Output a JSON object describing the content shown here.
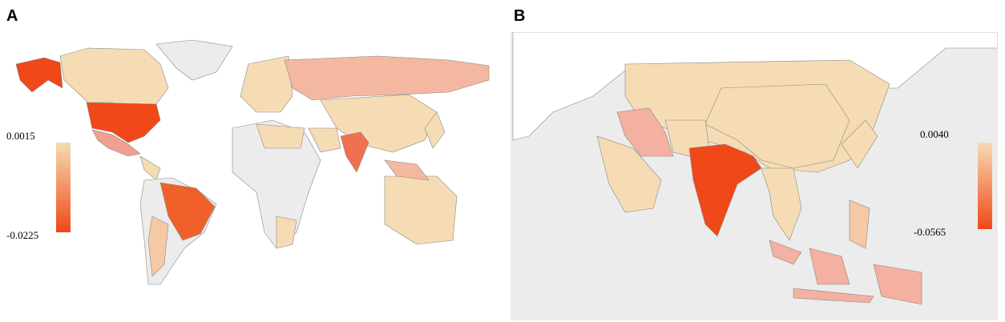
{
  "panels": [
    {
      "label": "A",
      "legend": {
        "max": 0.0015,
        "min": -0.0225,
        "color_max": "#f6dcb4",
        "color_min": "#f04818"
      }
    },
    {
      "label": "B",
      "legend": {
        "max": {
          "value": 0.004,
          "label": "0.0040"
        },
        "min": -0.0565,
        "color_max": "#f6dcb4",
        "color_min": "#f04818"
      }
    }
  ]
}
